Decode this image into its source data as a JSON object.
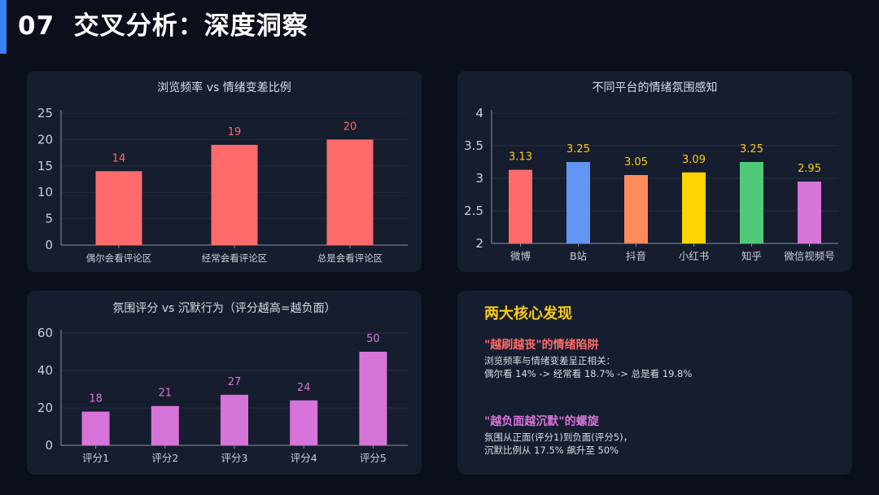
{
  "page": {
    "number": "07",
    "title": "交叉分析：深度洞察"
  },
  "colors": {
    "accent": "#3b82f6",
    "panel": "#161d2e",
    "label_bar1": "#ff6b6b",
    "label_bar2": "#facc15",
    "label_bar3": "#d674d9"
  },
  "chart_data": [
    {
      "type": "bar",
      "title": "浏览频率 vs 情绪变差比例",
      "categories": [
        "偶尔会看评论区",
        "经常会看评论区",
        "总是会看评论区"
      ],
      "values": [
        14,
        19,
        20
      ],
      "data_labels": [
        "14",
        "19",
        "20"
      ],
      "ylim": [
        0,
        25
      ],
      "yticks": [
        0,
        5,
        10,
        15,
        20,
        25
      ],
      "ytick_labels": [
        "0",
        "5",
        "10",
        "15",
        "20",
        "25"
      ],
      "colors": [
        "#ff6b6b",
        "#ff6b6b",
        "#ff6b6b"
      ],
      "grid": true
    },
    {
      "type": "bar",
      "title": "不同平台的情绪氛围感知",
      "categories": [
        "微博",
        "B站",
        "抖音",
        "小红书",
        "知乎",
        "微信视频号"
      ],
      "values": [
        3.13,
        3.25,
        3.05,
        3.09,
        3.25,
        2.95
      ],
      "data_labels": [
        "3.13",
        "3.25",
        "3.05",
        "3.09",
        "3.25",
        "2.95"
      ],
      "ylim": [
        2,
        4
      ],
      "yticks": [
        2,
        2.5,
        3,
        3.5,
        4
      ],
      "ytick_labels": [
        "2",
        "2.5",
        "3",
        "3.5",
        "4"
      ],
      "colors": [
        "#ff6b6b",
        "#6395f2",
        "#ff8a5b",
        "#ffd400",
        "#4fca78",
        "#d674d9"
      ],
      "grid": true
    },
    {
      "type": "bar",
      "title": "氛围评分 vs 沉默行为（评分越高=越负面）",
      "categories": [
        "评分1",
        "评分2",
        "评分3",
        "评分4",
        "评分5"
      ],
      "values": [
        18,
        21,
        27,
        24,
        50
      ],
      "data_labels": [
        "18",
        "21",
        "27",
        "24",
        "50"
      ],
      "ylim": [
        0,
        60
      ],
      "yticks": [
        0,
        20,
        40,
        60
      ],
      "ytick_labels": [
        "0",
        "20",
        "40",
        "60"
      ],
      "colors": [
        "#d674d9",
        "#d674d9",
        "#d674d9",
        "#d674d9",
        "#d674d9"
      ],
      "grid": true
    }
  ],
  "insights": {
    "heading": "两大核心发现",
    "items": [
      {
        "title": "\"越刷越丧\"的情绪陷阱",
        "color": "#ff6b6b",
        "lines": [
          "浏览频率与情绪变差呈正相关：",
          "偶尔看 14% -> 经常看 18.7% -> 总是看 19.8%"
        ]
      },
      {
        "title": "\"越负面越沉默\"的螺旋",
        "color": "#d674d9",
        "lines": [
          "氛围从正面(评分1)到负面(评分5)，",
          "沉默比例从 17.5% 飙升至 50%"
        ]
      }
    ]
  }
}
